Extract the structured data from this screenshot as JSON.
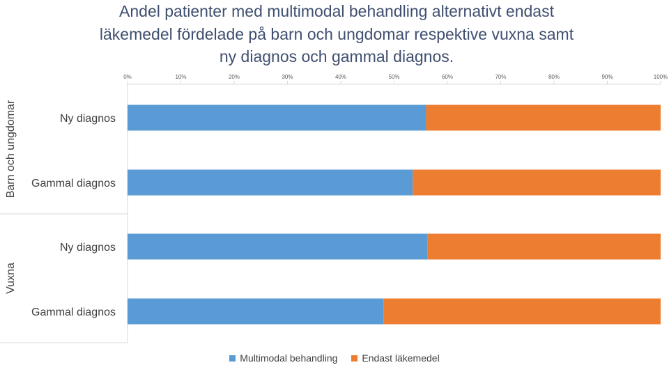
{
  "chart_data": {
    "type": "bar",
    "orientation": "horizontal",
    "stacked": "percent",
    "title_lines": [
      "Andel patienter med multimodal behandling alternativt endast",
      "läkemedel fördelade på barn och ungdomar respektive vuxna samt",
      "ny diagnos och gammal diagnos."
    ],
    "x_ticks": [
      "0%",
      "10%",
      "20%",
      "30%",
      "40%",
      "50%",
      "60%",
      "70%",
      "80%",
      "90%",
      "100%"
    ],
    "xlim": [
      0,
      100
    ],
    "grid": false,
    "legend_position": "bottom",
    "groups": [
      {
        "name": "Barn och ungdomar",
        "categories": [
          "Ny diagnos",
          "Gammal diagnos"
        ],
        "multimodal": [
          56,
          53.5
        ],
        "lakemedel": [
          44,
          46.5
        ]
      },
      {
        "name": "Vuxna",
        "categories": [
          "Ny diagnos",
          "Gammal diagnos"
        ],
        "multimodal": [
          56.3,
          48
        ],
        "lakemedel": [
          43.7,
          52
        ]
      }
    ],
    "series": [
      {
        "name": "Multimodal behandling",
        "color": "#5b9bd5"
      },
      {
        "name": "Endast läkemedel",
        "color": "#ed7d31"
      }
    ]
  }
}
